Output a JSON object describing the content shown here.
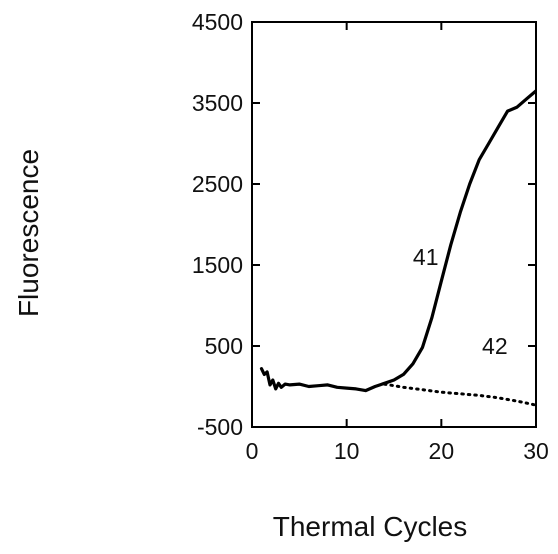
{
  "chart_data": {
    "type": "line",
    "title": "",
    "xlabel": "Thermal Cycles",
    "ylabel": "Fluorescence",
    "xlim": [
      0,
      30
    ],
    "ylim": [
      -500,
      4500
    ],
    "xticks": [
      0,
      10,
      20,
      30
    ],
    "yticks": [
      -500,
      500,
      1500,
      2500,
      3500,
      4500
    ],
    "xtick_labels": [
      "0",
      "10",
      "20",
      "30"
    ],
    "ytick_labels": [
      "-500",
      "500",
      "1500",
      "2500",
      "3500",
      "4500"
    ],
    "grid": false,
    "legend": "none",
    "series": [
      {
        "style": "solid",
        "color": "#000000",
        "x": [
          1,
          1.3,
          1.6,
          1.9,
          2.2,
          2.5,
          2.8,
          3.1,
          3.5,
          4,
          5,
          6,
          7,
          8,
          9,
          10,
          11,
          12,
          13,
          14,
          15,
          16,
          17,
          18,
          19,
          20,
          21,
          22,
          23,
          24,
          25,
          26,
          27,
          28,
          29,
          30
        ],
        "y": [
          220,
          150,
          180,
          20,
          80,
          -30,
          40,
          -10,
          30,
          20,
          30,
          0,
          10,
          20,
          -10,
          -20,
          -30,
          -50,
          0,
          40,
          80,
          150,
          280,
          480,
          850,
          1300,
          1750,
          2150,
          2500,
          2800,
          3000,
          3200,
          3400,
          3450,
          3550,
          3650
        ]
      },
      {
        "style": "dotted",
        "color": "#000000",
        "x": [
          14,
          16,
          18,
          20,
          22,
          24,
          26,
          28,
          30
        ],
        "y": [
          30,
          -10,
          -40,
          -70,
          -90,
          -110,
          -140,
          -180,
          -230
        ]
      }
    ],
    "annotations": [
      {
        "text": "41",
        "x": 17,
        "y": 1500
      },
      {
        "text": "42",
        "x": 24.3,
        "y": 400
      }
    ]
  }
}
